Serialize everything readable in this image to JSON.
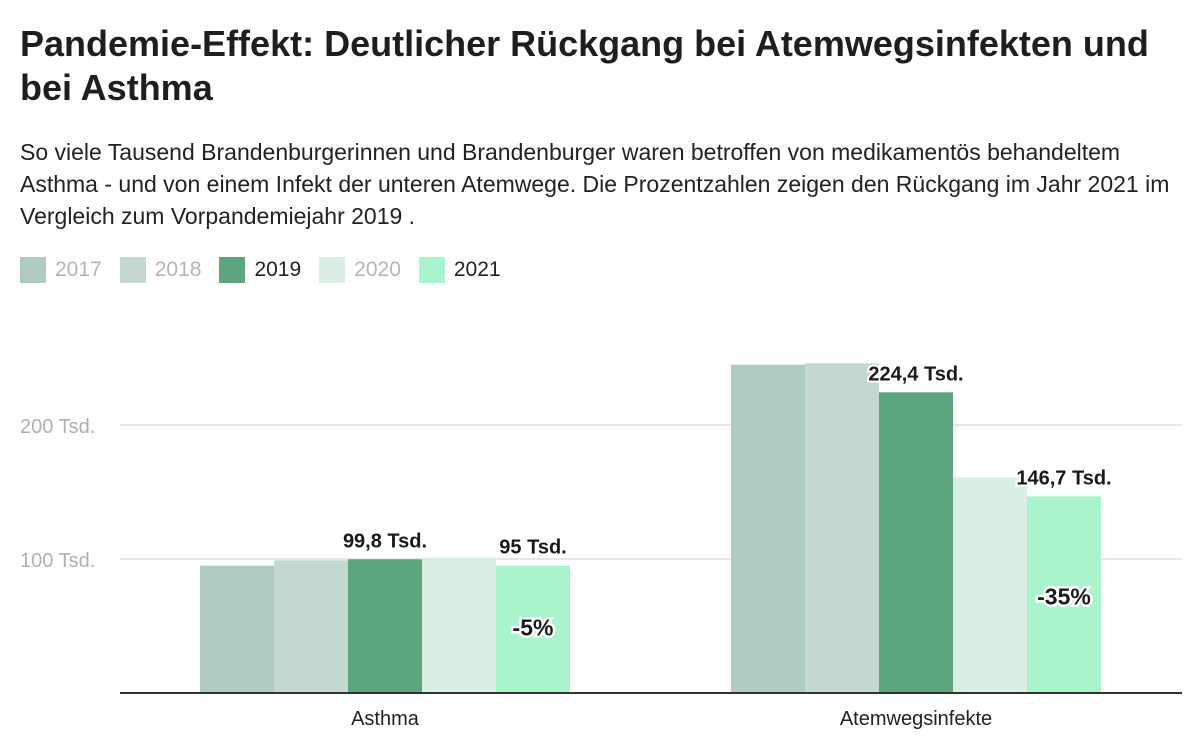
{
  "header": {
    "title": "Pandemie-Effekt: Deutlicher Rückgang bei Atemwegsinfekten und bei Asthma",
    "subtitle": "So viele Tausend Brandenburgerinnen und Brandenburger waren betroffen von medikamentös behandeltem Asthma - und von einem Infekt der unteren Atemwege. Die Prozentzahlen zeigen den Rückgang im Jahr 2021 im Vergleich zum Vorpandemiejahr 2019 ."
  },
  "legend": [
    {
      "label": "2017",
      "color": "#b0cbc0",
      "text_color": "#b5b5b5"
    },
    {
      "label": "2018",
      "color": "#c3d9cf",
      "text_color": "#b5b5b5"
    },
    {
      "label": "2019",
      "color": "#5ca57e",
      "text_color": "#222222"
    },
    {
      "label": "2020",
      "color": "#d9efe3",
      "text_color": "#b5b5b5"
    },
    {
      "label": "2021",
      "color": "#a9f4cc",
      "text_color": "#222222"
    }
  ],
  "chart_data": {
    "type": "bar",
    "categories": [
      "Asthma",
      "Atemwegsinfekte"
    ],
    "series": [
      {
        "name": "2017",
        "values": [
          95,
          245
        ]
      },
      {
        "name": "2018",
        "values": [
          99,
          246
        ]
      },
      {
        "name": "2019",
        "values": [
          99.8,
          224.4
        ]
      },
      {
        "name": "2020",
        "values": [
          101,
          161
        ]
      },
      {
        "name": "2021",
        "values": [
          95,
          146.7
        ]
      }
    ],
    "value_labels": [
      {
        "series": "2019",
        "category": "Asthma",
        "text": "99,8 Tsd."
      },
      {
        "series": "2021",
        "category": "Asthma",
        "text": "95 Tsd."
      },
      {
        "series": "2019",
        "category": "Atemwegsinfekte",
        "text": "224,4 Tsd."
      },
      {
        "series": "2021",
        "category": "Atemwegsinfekte",
        "text": "146,7 Tsd."
      }
    ],
    "change_labels": [
      {
        "series": "2021",
        "category": "Asthma",
        "text": "-5%"
      },
      {
        "series": "2021",
        "category": "Atemwegsinfekte",
        "text": "-35%"
      }
    ],
    "y_ticks": [
      {
        "value": 100,
        "label": "100 Tsd."
      },
      {
        "value": 200,
        "label": "200 Tsd."
      }
    ],
    "ylim": [
      0,
      270
    ],
    "grid": true,
    "legend_position": "top-left"
  }
}
